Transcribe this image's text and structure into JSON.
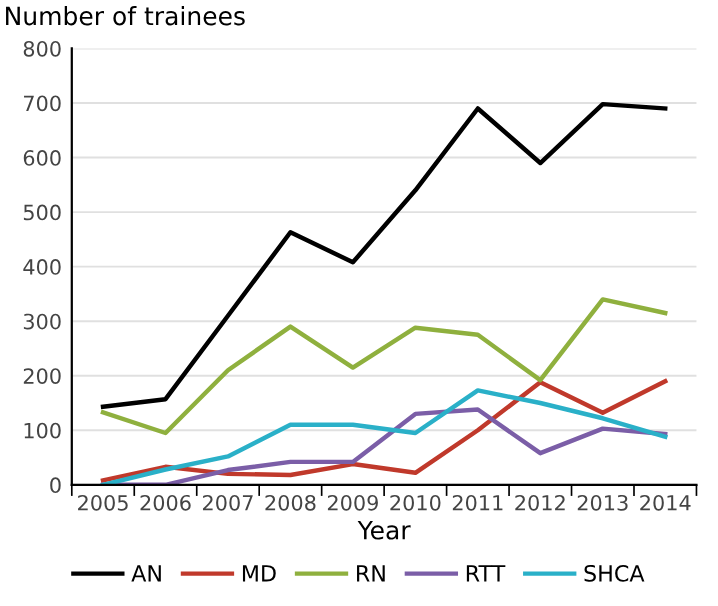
{
  "chart_data": {
    "type": "line",
    "ylabel": "Number of trainees",
    "xlabel": "Year",
    "categories": [
      "2005",
      "2006",
      "2007",
      "2008",
      "2009",
      "2010",
      "2011",
      "2012",
      "2013",
      "2014"
    ],
    "series": [
      {
        "name": "AN",
        "color": "#000000",
        "values": [
          143,
          157,
          310,
          463,
          408,
          540,
          690,
          590,
          698,
          690
        ]
      },
      {
        "name": "MD",
        "color": "#c0392b",
        "values": [
          8,
          33,
          20,
          18,
          38,
          22,
          100,
          188,
          132,
          190
        ]
      },
      {
        "name": "RN",
        "color": "#8fb03e",
        "values": [
          133,
          95,
          210,
          290,
          215,
          288,
          275,
          192,
          340,
          315
        ]
      },
      {
        "name": "RTT",
        "color": "#7b5ea7",
        "values": [
          0,
          0,
          27,
          42,
          42,
          130,
          138,
          58,
          103,
          93
        ]
      },
      {
        "name": "SHCA",
        "color": "#2ab0c8",
        "values": [
          0,
          28,
          52,
          110,
          110,
          95,
          173,
          150,
          122,
          88
        ]
      }
    ],
    "ylim": [
      0,
      800
    ],
    "yticks": [
      0,
      100,
      200,
      300,
      400,
      500,
      600,
      700,
      800
    ],
    "grid": "y",
    "legend": "bottom",
    "line_style": "solid",
    "marker": "none"
  }
}
